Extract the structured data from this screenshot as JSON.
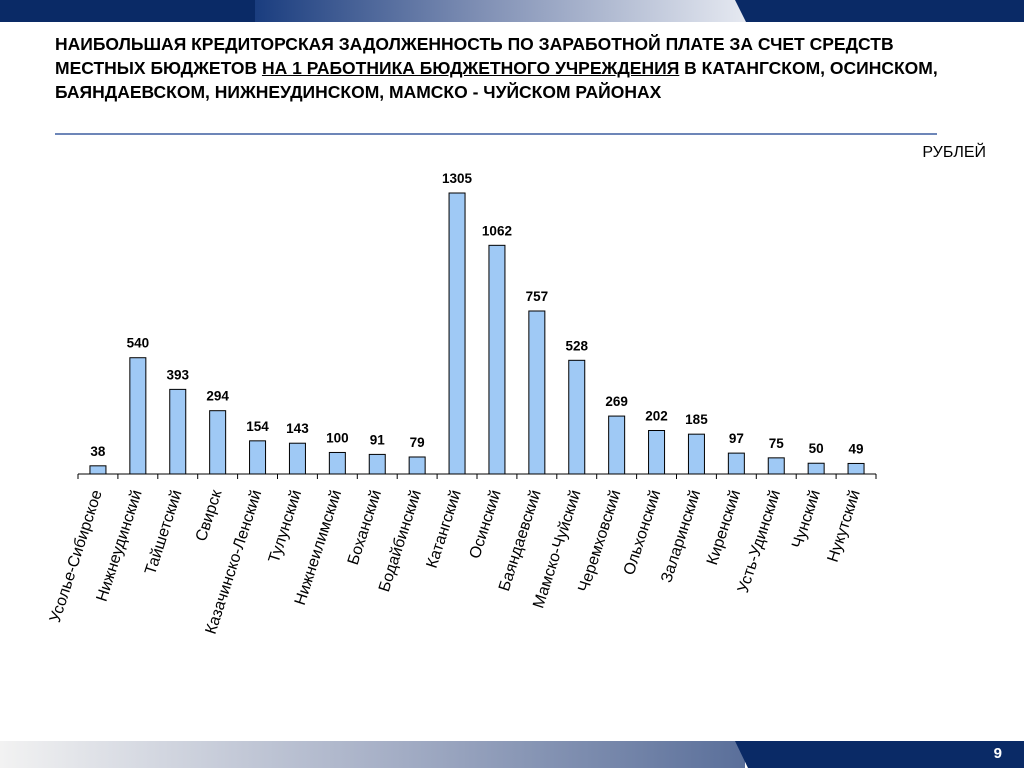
{
  "title": {
    "part1": "НАИБОЛЬШАЯ КРЕДИТОРСКАЯ ЗАДОЛЖЕННОСТЬ ПО ЗАРАБОТНОЙ ПЛАТЕ ЗА СЧЕТ СРЕДСТВ МЕСТНЫХ БЮДЖЕТОВ ",
    "underlined": "НА 1 РАБОТНИКА БЮДЖЕТНОГО УЧРЕЖДЕНИЯ",
    "part2": " В КАТАНГСКОМ, ОСИНСКОМ, БАЯНДАЕВСКОМ, НИЖНЕУДИНСКОМ, МАМСКО - ЧУЙСКОМ РАЙОНАХ"
  },
  "units": "РУБЛЕЙ",
  "page_number": "9",
  "colors": {
    "bar_fill": "#9fc9f5",
    "bar_stroke": "#000000",
    "header_dark": "#0a2a66"
  },
  "chart_data": {
    "type": "bar",
    "title": "",
    "xlabel": "",
    "ylabel": "",
    "ylim": [
      0,
      1400
    ],
    "grid": false,
    "categories": [
      "Усолье-Сибирское",
      "Нижнеудинский",
      "Тайшетский",
      "Свирск",
      "Казачинско-Ленский",
      "Тулунский",
      "Нижнеилимский",
      "Боханский",
      "Бодайбинский",
      "Катангский",
      "Осинский",
      "Баяндаевский",
      "Мамско-Чуйский",
      "Черемховский",
      "Ольхонский",
      "Заларинский",
      "Киренский",
      "Усть-Удинский",
      "Чунский",
      "Нукутский"
    ],
    "values": [
      38,
      540,
      393,
      294,
      154,
      143,
      100,
      91,
      79,
      1305,
      1062,
      757,
      528,
      269,
      202,
      185,
      97,
      75,
      50,
      49
    ],
    "data_labels": [
      "38",
      "540",
      "393",
      "294",
      "154",
      "143",
      "100",
      "91",
      "79",
      "1305",
      "1062",
      "757",
      "528",
      "269",
      "202",
      "185",
      "97",
      "75",
      "50",
      "49"
    ]
  }
}
